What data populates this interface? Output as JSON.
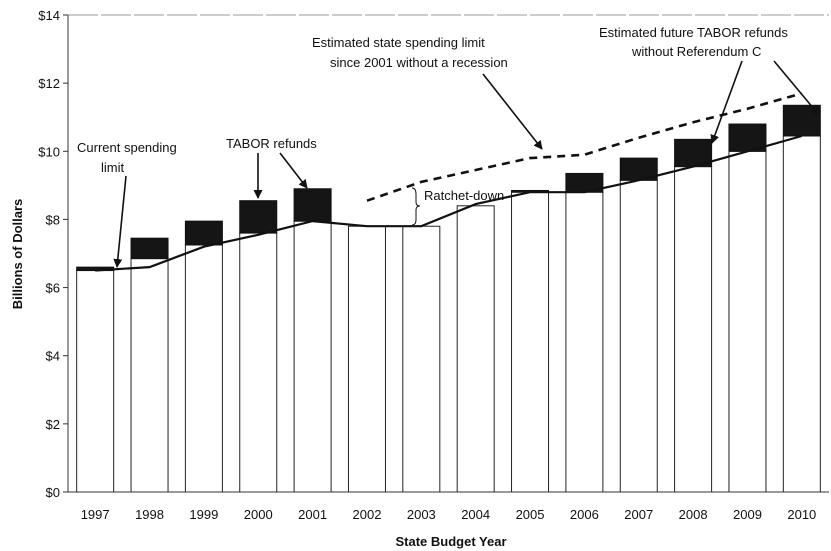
{
  "chart_data": {
    "type": "bar",
    "title": "",
    "xlabel": "State Budget Year",
    "ylabel": "Billions of Dollars",
    "ylim": [
      0,
      14
    ],
    "y_ticks": [
      "$0",
      "$2",
      "$4",
      "$6",
      "$8",
      "$10",
      "$12",
      "$14"
    ],
    "y_tick_values": [
      0,
      2,
      4,
      6,
      8,
      10,
      12,
      14
    ],
    "categories": [
      "1997",
      "1998",
      "1999",
      "2000",
      "2001",
      "2002",
      "2003",
      "2004",
      "2005",
      "2006",
      "2007",
      "2008",
      "2009",
      "2010"
    ],
    "grid": false,
    "legend": "none",
    "series": [
      {
        "name": "",
        "role": "spending (bar base)",
        "values": [
          6.5,
          6.85,
          7.25,
          7.6,
          7.95,
          7.8,
          7.8,
          8.4,
          8.8,
          8.8,
          9.15,
          9.55,
          10.0,
          10.45
        ]
      },
      {
        "name": "",
        "role": "TABOR refunds (bar top)",
        "values": [
          0.1,
          0.6,
          0.7,
          0.95,
          0.95,
          0,
          0,
          0,
          0.05,
          0.55,
          0.65,
          0.8,
          0.8,
          0.9
        ]
      },
      {
        "name": "",
        "role": "current spending limit (solid line)",
        "values": [
          6.5,
          6.6,
          7.2,
          7.55,
          7.95,
          7.8,
          7.8,
          8.45,
          8.8,
          8.8,
          9.15,
          9.55,
          10.0,
          10.45
        ]
      },
      {
        "name": "",
        "role": "spending limit without recession (dashed line)",
        "x": [
          "2002",
          "2003",
          "2004",
          "2005",
          "2006",
          "2007",
          "2008",
          "2009",
          "2010"
        ],
        "values": [
          8.55,
          9.1,
          9.45,
          9.8,
          9.9,
          10.4,
          10.85,
          11.25,
          11.7
        ]
      }
    ],
    "annotations": {
      "current_limit": [
        "Current spending",
        "limit"
      ],
      "tabor_refunds": "TABOR refunds",
      "estimated_limit": [
        "Estimated state spending limit",
        "since 2001 without a recession"
      ],
      "ratchet_down": "Ratchet-down",
      "future_refunds": [
        "Estimated future TABOR refunds",
        "without Referendum C"
      ]
    },
    "colors": {
      "bar_fill": "#ffffff",
      "refund_fill": "#151515",
      "line": "#111111",
      "axis": "#333333"
    }
  }
}
